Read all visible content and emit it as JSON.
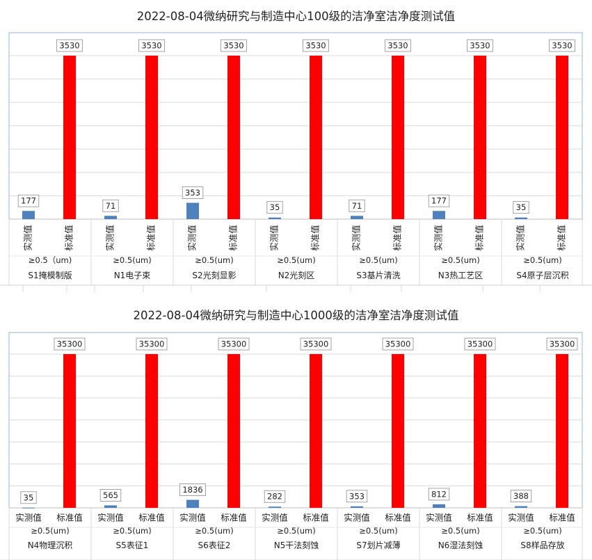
{
  "chart_data": [
    {
      "type": "bar",
      "title": "2022-08-04微纳研究与制造中心100级的洁净室洁净度测试值",
      "series": [
        {
          "name": "实测值",
          "color": "#4f81bd",
          "values": [
            177,
            71,
            353,
            35,
            71,
            177,
            35
          ]
        },
        {
          "name": "标准值",
          "color": "#ff0000",
          "values": [
            3530,
            3530,
            3530,
            3530,
            3530,
            3530,
            3530
          ]
        }
      ],
      "size_labels": [
        "≥0.5（um)",
        "≥0.5(um)",
        "≥0.5(um)",
        "≥0.5(um)",
        "≥0.5(um)",
        "≥0.5(um)",
        "≥0.5(um)"
      ],
      "categories": [
        "S1掩模制版",
        "N1电子束",
        "S2光刻显影",
        "N2光刻区",
        "S3基片清洗",
        "N3热工艺区",
        "S4原子层沉积"
      ],
      "ylim": [
        0,
        3530
      ],
      "gridlines": 7,
      "bar_label_orientation": "vertical"
    },
    {
      "type": "bar",
      "title": "2022-08-04微纳研究与制造中心1000级的洁净室洁净度测试值",
      "series": [
        {
          "name": "实测值",
          "color": "#4f81bd",
          "values": [
            35,
            565,
            1836,
            282,
            353,
            812,
            388
          ]
        },
        {
          "name": "标准值",
          "color": "#ff0000",
          "values": [
            35300,
            35300,
            35300,
            35300,
            35300,
            35300,
            35300
          ]
        }
      ],
      "size_labels": [
        "≥0.5(um)",
        "≥0.5(um)",
        "≥0.5(um)",
        "≥0.5(um)",
        "≥0.5(um)",
        "≥0.5(um)",
        "≥0.5(um)"
      ],
      "categories": [
        "N4物理沉积",
        "S5表征1",
        "S6表征2",
        "N5干法刻蚀",
        "S7划片减薄",
        "N6湿法刻蚀",
        "S8样品存放"
      ],
      "ylim": [
        0,
        35300
      ],
      "gridlines": 7,
      "bar_label_orientation": "horizontal"
    }
  ]
}
